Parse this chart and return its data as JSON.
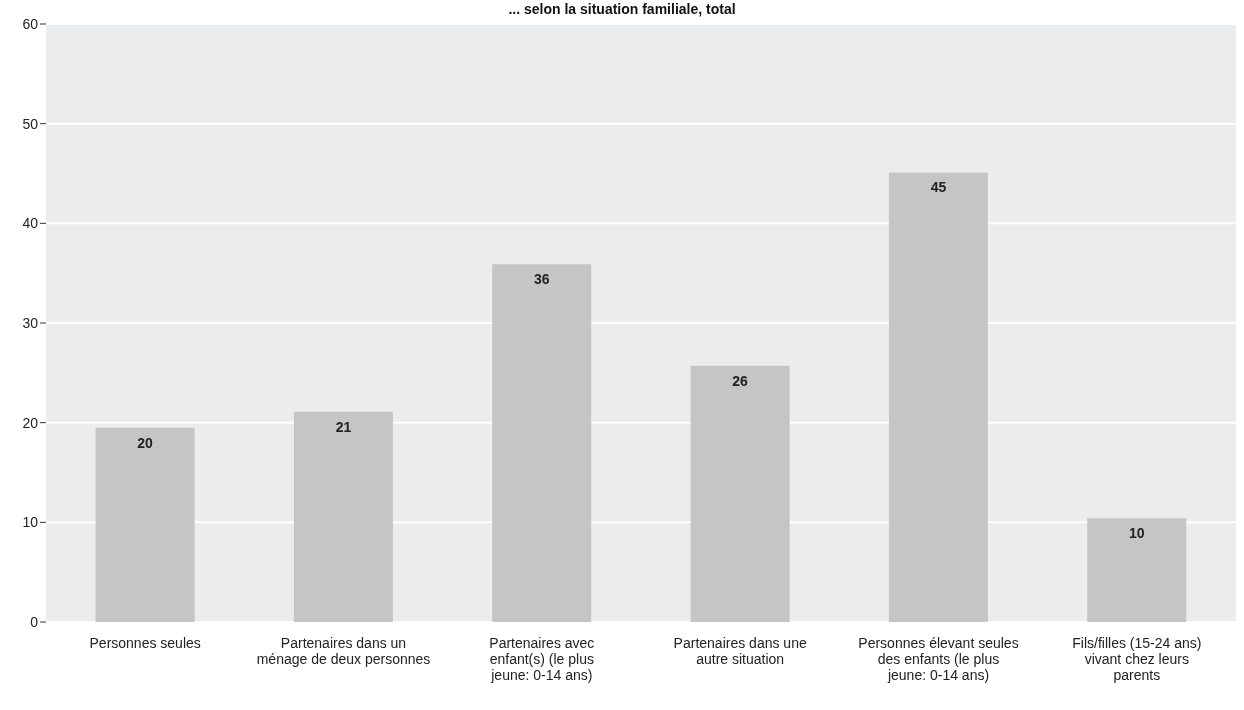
{
  "chart_data": {
    "type": "bar",
    "title": "... selon la situation familiale, total",
    "categories": [
      "Personnes seules",
      "Partenaires dans un ménage de deux personnes",
      "Partenaires avec enfant(s) (le plus jeune: 0-14 ans)",
      "Partenaires dans une autre situation",
      "Personnes élevant seules des enfants (le plus jeune: 0-14 ans)",
      "Fils/filles (15-24 ans) vivant chez leurs parents"
    ],
    "values": [
      19.5,
      21.1,
      35.9,
      25.7,
      45.1,
      10.4
    ],
    "value_labels": [
      "20",
      "21",
      "36",
      "26",
      "45",
      "10"
    ],
    "color": "#c4c5c7",
    "ylim": [
      0,
      60
    ],
    "yticks": [
      0,
      10,
      20,
      30,
      40,
      50,
      60
    ],
    "grid": "y"
  }
}
